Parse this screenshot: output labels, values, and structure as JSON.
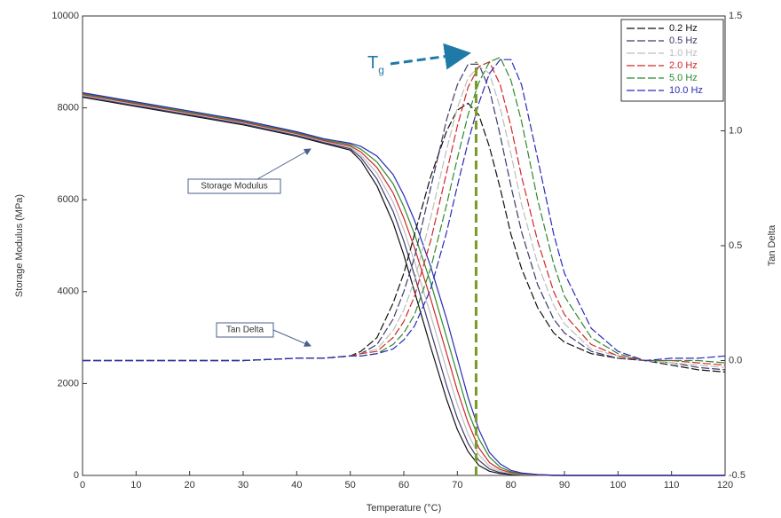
{
  "chart_data": {
    "type": "line",
    "x_label": "Temperature (°C)",
    "y_label": "Storage Modulus (MPa)",
    "y2_label": "Tan Delta",
    "xlim": [
      0,
      120
    ],
    "xticks": [
      0,
      10,
      20,
      30,
      40,
      50,
      60,
      70,
      80,
      90,
      100,
      110,
      120
    ],
    "ylim": [
      0,
      10000
    ],
    "yticks": [
      0,
      2000,
      4000,
      6000,
      8000,
      10000
    ],
    "y2lim": [
      -0.5,
      1.5
    ],
    "y2ticks": [
      -0.5,
      {
        "value": 0,
        "label": "0.0"
      },
      0.5,
      {
        "value": 1,
        "label": "1.0"
      },
      1.5
    ],
    "legend": "top-right",
    "x": [
      0,
      10,
      20,
      30,
      40,
      45,
      50,
      52,
      55,
      58,
      60,
      62,
      65,
      68,
      70,
      72,
      74,
      76,
      78,
      80,
      82,
      85,
      88,
      90,
      95,
      100,
      105,
      110,
      115,
      120
    ],
    "series": [
      {
        "name": "0.2 Hz",
        "color": "#111111",
        "values": [
          8230,
          8030,
          7830,
          7630,
          7380,
          7230,
          7080,
          6850,
          6300,
          5500,
          4800,
          4000,
          2800,
          1650,
          1000,
          520,
          220,
          90,
          40,
          20,
          10,
          5,
          0,
          0,
          0,
          0,
          0,
          0,
          0,
          0
        ]
      },
      {
        "name": "0.5 Hz",
        "color": "#3b3b6e",
        "values": [
          8250,
          8050,
          7850,
          7650,
          7400,
          7250,
          7110,
          6920,
          6450,
          5750,
          5100,
          4350,
          3150,
          1950,
          1250,
          700,
          330,
          140,
          60,
          30,
          15,
          5,
          0,
          0,
          0,
          0,
          0,
          0,
          0,
          0
        ]
      },
      {
        "name": "1.0 Hz",
        "color": "#bdbdbd",
        "values": [
          8270,
          8070,
          7870,
          7670,
          7420,
          7270,
          7140,
          6980,
          6580,
          5950,
          5350,
          4650,
          3500,
          2300,
          1550,
          900,
          450,
          200,
          90,
          40,
          20,
          8,
          0,
          0,
          0,
          0,
          0,
          0,
          0,
          0
        ]
      },
      {
        "name": "2.0 Hz",
        "color": "#d02828",
        "values": [
          8290,
          8090,
          7890,
          7690,
          7440,
          7290,
          7170,
          7040,
          6700,
          6150,
          5600,
          4950,
          3850,
          2650,
          1850,
          1150,
          600,
          280,
          130,
          60,
          30,
          10,
          0,
          0,
          0,
          0,
          0,
          0,
          0,
          0
        ]
      },
      {
        "name": "5.0 Hz",
        "color": "#2e8a2e",
        "values": [
          8310,
          8110,
          7910,
          7710,
          7460,
          7310,
          7200,
          7100,
          6820,
          6350,
          5850,
          5250,
          4200,
          3000,
          2200,
          1400,
          800,
          400,
          180,
          80,
          40,
          15,
          5,
          0,
          0,
          0,
          0,
          0,
          0,
          0
        ]
      },
      {
        "name": "10.0 Hz",
        "color": "#2a2ab8",
        "values": [
          8330,
          8130,
          7930,
          7730,
          7480,
          7330,
          7230,
          7160,
          6950,
          6550,
          6100,
          5550,
          4550,
          3400,
          2550,
          1700,
          1000,
          500,
          250,
          110,
          55,
          20,
          5,
          0,
          0,
          0,
          0,
          0,
          0,
          0
        ]
      },
      {
        "color": "#111111",
        "axis": "y2",
        "dashed": true,
        "values": [
          0,
          0,
          0,
          0,
          0.01,
          0.01,
          0.02,
          0.04,
          0.1,
          0.25,
          0.38,
          0.55,
          0.8,
          1.0,
          1.09,
          1.12,
          1.07,
          0.93,
          0.75,
          0.55,
          0.4,
          0.23,
          0.12,
          0.08,
          0.03,
          0.01,
          0,
          -0.02,
          -0.04,
          -0.05
        ]
      },
      {
        "color": "#3b3b6e",
        "axis": "y2",
        "dashed": true,
        "values": [
          0,
          0,
          0,
          0,
          0.01,
          0.01,
          0.02,
          0.03,
          0.07,
          0.18,
          0.3,
          0.45,
          0.75,
          1.05,
          1.2,
          1.29,
          1.29,
          1.18,
          0.98,
          0.76,
          0.56,
          0.33,
          0.18,
          0.12,
          0.04,
          0.01,
          0,
          -0.01,
          -0.03,
          -0.04
        ]
      },
      {
        "color": "#bdbdbd",
        "axis": "y2",
        "dashed": true,
        "values": [
          0,
          0,
          0,
          0,
          0.01,
          0.01,
          0.02,
          0.03,
          0.05,
          0.13,
          0.22,
          0.35,
          0.62,
          0.92,
          1.1,
          1.23,
          1.28,
          1.25,
          1.1,
          0.9,
          0.68,
          0.42,
          0.24,
          0.16,
          0.05,
          0.02,
          0,
          -0.01,
          -0.02,
          -0.03
        ]
      },
      {
        "color": "#d02828",
        "axis": "y2",
        "dashed": true,
        "values": [
          0,
          0,
          0,
          0,
          0.01,
          0.01,
          0.02,
          0.03,
          0.04,
          0.1,
          0.17,
          0.28,
          0.52,
          0.82,
          1.02,
          1.19,
          1.28,
          1.3,
          1.2,
          1.02,
          0.8,
          0.52,
          0.3,
          0.2,
          0.07,
          0.02,
          0,
          0,
          -0.01,
          -0.02
        ]
      },
      {
        "color": "#2e8a2e",
        "axis": "y2",
        "dashed": true,
        "values": [
          0,
          0,
          0,
          0,
          0.01,
          0.01,
          0.02,
          0.02,
          0.03,
          0.07,
          0.12,
          0.2,
          0.4,
          0.68,
          0.88,
          1.07,
          1.21,
          1.3,
          1.32,
          1.22,
          1.04,
          0.7,
          0.42,
          0.28,
          0.1,
          0.03,
          0,
          0,
          0,
          -0.01
        ]
      },
      {
        "color": "#2a2ab8",
        "axis": "y2",
        "dashed": true,
        "values": [
          0,
          0,
          0,
          0,
          0.01,
          0.01,
          0.02,
          0.02,
          0.03,
          0.05,
          0.09,
          0.15,
          0.31,
          0.56,
          0.76,
          0.95,
          1.12,
          1.25,
          1.31,
          1.31,
          1.2,
          0.88,
          0.55,
          0.38,
          0.14,
          0.04,
          0,
          0.01,
          0.01,
          0.02
        ]
      }
    ],
    "tg_marker": {
      "x": 73.5,
      "value": 1.3,
      "color": "#7a9a2a"
    },
    "annotations": [
      {
        "text": "Storage Modulus"
      },
      {
        "text": "Tan Delta"
      },
      {
        "text": "T",
        "subscript": "g"
      }
    ]
  }
}
